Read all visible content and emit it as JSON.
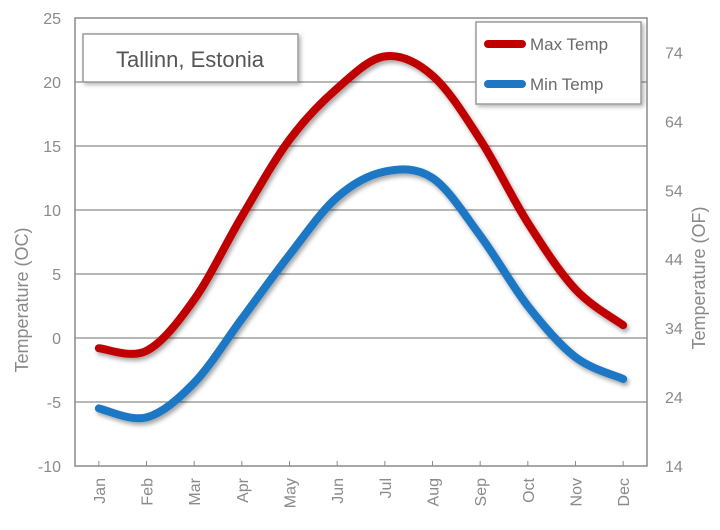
{
  "chart_data": {
    "type": "line",
    "title": "Tallinn, Estonia",
    "categories": [
      "Jan",
      "Feb",
      "Mar",
      "Apr",
      "May",
      "Jun",
      "Jul",
      "Aug",
      "Sep",
      "Oct",
      "Nov",
      "Dec"
    ],
    "series": [
      {
        "name": "Max Temp",
        "color": "#c00000",
        "values": [
          -0.8,
          -1.0,
          3.0,
          9.5,
          15.5,
          19.5,
          22.0,
          20.5,
          15.5,
          9.0,
          3.8,
          1.0
        ]
      },
      {
        "name": "Min Temp",
        "color": "#1f77c4",
        "values": [
          -5.5,
          -6.2,
          -3.5,
          1.5,
          6.5,
          11.0,
          13.0,
          12.5,
          8.0,
          2.5,
          -1.5,
          -3.2
        ]
      }
    ],
    "ylabel_left": "Temperature (OC)",
    "ylabel_right": "Temperature (OF)",
    "ylim": [
      -10,
      25
    ],
    "yticks_left": [
      "-10",
      "-5",
      "0",
      "5",
      "10",
      "15",
      "20",
      "25"
    ],
    "y2lim": [
      14,
      79
    ],
    "yticks_right": [
      "14",
      "24",
      "34",
      "44",
      "54",
      "64",
      "74"
    ],
    "legend_position": "top-right",
    "grid": true
  }
}
